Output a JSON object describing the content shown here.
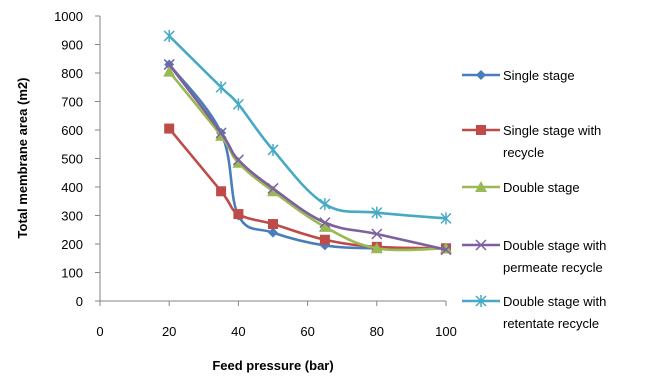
{
  "chart_data": {
    "type": "line",
    "title": "",
    "xlabel": "Feed pressure (bar)",
    "ylabel": "Total membrane area (m2)",
    "xlim": [
      0,
      100
    ],
    "ylim": [
      0,
      1000
    ],
    "xticks": [
      0,
      20,
      40,
      60,
      80,
      100
    ],
    "yticks": [
      0,
      100,
      200,
      300,
      400,
      500,
      600,
      700,
      800,
      900,
      1000
    ],
    "grid": false,
    "legend_position": "right",
    "series": [
      {
        "name": "Single stage",
        "color": "#4a7ebb",
        "marker": "diamond",
        "x": [
          20,
          35,
          40,
          50,
          65,
          80,
          100
        ],
        "y": [
          830,
          590,
          300,
          240,
          195,
          185,
          185
        ]
      },
      {
        "name": "Single stage with recycle",
        "color": "#be4b48",
        "marker": "square",
        "x": [
          20,
          35,
          40,
          50,
          65,
          80,
          100
        ],
        "y": [
          605,
          385,
          305,
          270,
          215,
          190,
          185
        ]
      },
      {
        "name": "Double stage",
        "color": "#98b954",
        "marker": "triangle",
        "x": [
          20,
          35,
          40,
          50,
          65,
          80,
          100
        ],
        "y": [
          805,
          580,
          485,
          385,
          260,
          185,
          185
        ]
      },
      {
        "name": "Double stage with permeate recycle",
        "color": "#7d60a0",
        "marker": "x",
        "x": [
          20,
          35,
          40,
          50,
          65,
          80,
          100
        ],
        "y": [
          830,
          590,
          495,
          395,
          275,
          235,
          180
        ]
      },
      {
        "name": "Double stage with retentate recycle",
        "color": "#46aac5",
        "marker": "star",
        "x": [
          20,
          35,
          40,
          50,
          65,
          80,
          100
        ],
        "y": [
          930,
          750,
          690,
          530,
          340,
          310,
          290
        ]
      }
    ]
  },
  "legend_lines": [
    [
      "Single stage"
    ],
    [
      "Single stage with",
      "recycle"
    ],
    [
      "Double stage"
    ],
    [
      "Double stage with",
      "permeate recycle"
    ],
    [
      "Double stage with",
      "retentate recycle"
    ]
  ]
}
